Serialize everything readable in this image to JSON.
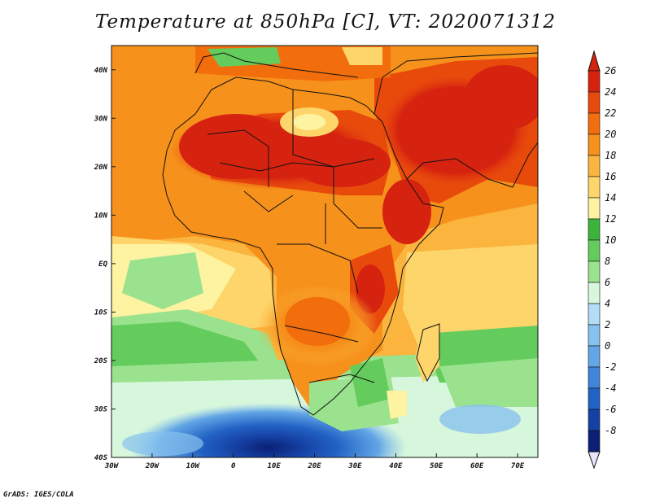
{
  "title": "Temperature at 850hPa [C], VT: 2020071312",
  "credit": "GrADS: IGES/COLA",
  "map": {
    "lon_range": [
      -30,
      75
    ],
    "lat_range": [
      -40,
      45
    ],
    "lon_ticks": [
      {
        "value": -30,
        "label": "30W"
      },
      {
        "value": -20,
        "label": "20W"
      },
      {
        "value": -10,
        "label": "10W"
      },
      {
        "value": 0,
        "label": "0"
      },
      {
        "value": 10,
        "label": "10E"
      },
      {
        "value": 20,
        "label": "20E"
      },
      {
        "value": 30,
        "label": "30E"
      },
      {
        "value": 40,
        "label": "40E"
      },
      {
        "value": 50,
        "label": "50E"
      },
      {
        "value": 60,
        "label": "60E"
      },
      {
        "value": 70,
        "label": "70E"
      }
    ],
    "lat_ticks": [
      {
        "value": 40,
        "label": "40N"
      },
      {
        "value": 30,
        "label": "30N"
      },
      {
        "value": 20,
        "label": "20N"
      },
      {
        "value": 10,
        "label": "10N"
      },
      {
        "value": 0,
        "label": "EQ"
      },
      {
        "value": -10,
        "label": "10S"
      },
      {
        "value": -20,
        "label": "20S"
      },
      {
        "value": -30,
        "label": "30S"
      },
      {
        "value": -40,
        "label": "40S"
      }
    ]
  },
  "colorbar": {
    "levels": [
      26,
      24,
      22,
      20,
      18,
      16,
      14,
      12,
      10,
      8,
      6,
      4,
      2,
      0,
      -2,
      -4,
      -6,
      -8
    ],
    "labels": [
      "26",
      "24",
      "22",
      "20",
      "18",
      "16",
      "14",
      "12",
      "10",
      "8",
      "6",
      "4",
      "2",
      "0",
      "-2",
      "-4",
      "-6",
      "-8"
    ],
    "colors": [
      "#d62310",
      "#e84a0c",
      "#f26d0c",
      "#f6911b",
      "#fbb43d",
      "#fdd56b",
      "#fef3a0",
      "#3cb43c",
      "#64cc5c",
      "#9ae28e",
      "#d7f7dc",
      "#b3dcf5",
      "#87c2ee",
      "#63a6e6",
      "#3f86d8",
      "#2262c4",
      "#1541a3",
      "#0b1f74"
    ],
    "top_arrow_color": "#d62310",
    "bottom_arrow_color": "#e8e4fa"
  }
}
